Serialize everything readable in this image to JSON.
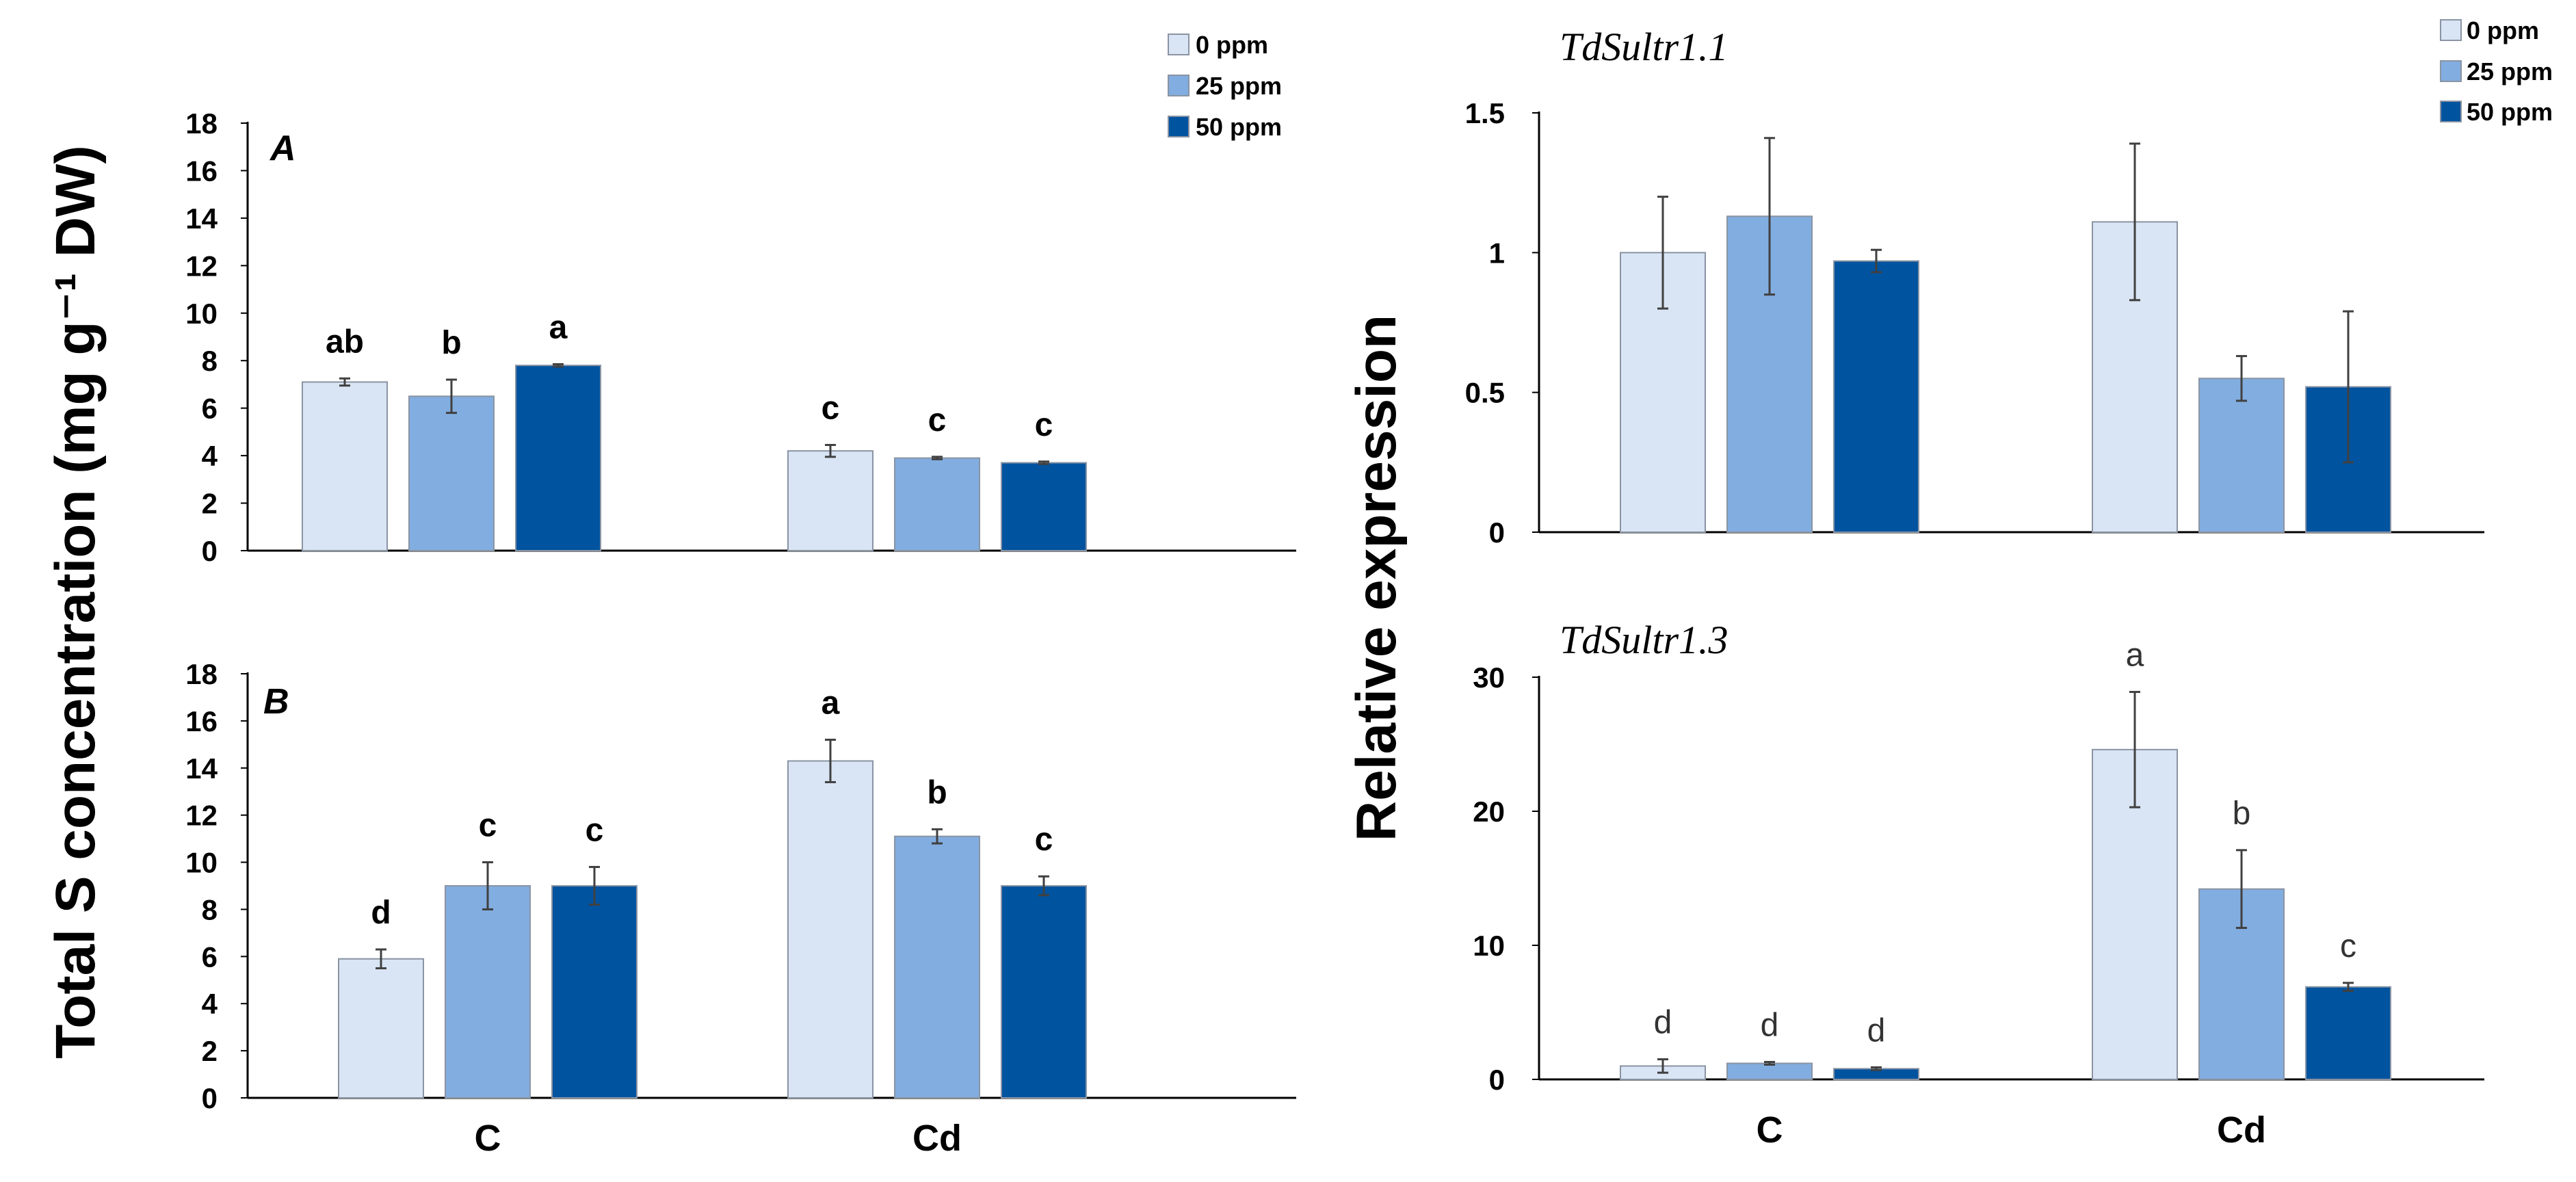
{
  "colors": {
    "ppm0": "#d9e5f4",
    "ppm25": "#82ade0",
    "ppm50": "#00539f",
    "bar_border": "#8a94a3",
    "axis": "#000000",
    "error": "#404040"
  },
  "legend_left": [
    "0 ppm",
    "25 ppm",
    "50 ppm"
  ],
  "legend_right": [
    "0 ppm",
    "25 ppm",
    "50 ppm"
  ],
  "left_ylabel": "Total S  concentration (mg g⁻¹ DW)",
  "right_ylabel": "Relative expression",
  "chart_data": [
    {
      "id": "A",
      "type": "bar",
      "panel_label": "A",
      "title": "",
      "xlabel": "",
      "ylabel": "Total S  concentration (mg g⁻¹ DW)",
      "categories": [
        "C",
        "Cd"
      ],
      "ylim": [
        0,
        18
      ],
      "yticks": [
        0,
        2,
        4,
        6,
        8,
        10,
        12,
        14,
        16,
        18
      ],
      "ytick_labels": [
        "0",
        "2",
        "4",
        "6",
        "8",
        "10",
        "12",
        "14",
        "16",
        "18"
      ],
      "show_category_labels": false,
      "letter_style": "bold",
      "series": [
        {
          "name": "0 ppm",
          "values": [
            7.1,
            4.2
          ],
          "errors": [
            0.15,
            0.25
          ],
          "letters": [
            "ab",
            "c"
          ]
        },
        {
          "name": "25 ppm",
          "values": [
            6.5,
            3.9
          ],
          "errors": [
            0.7,
            0.05
          ],
          "letters": [
            "b",
            "c"
          ]
        },
        {
          "name": "50 ppm",
          "values": [
            7.8,
            3.7
          ],
          "errors": [
            0.05,
            0.05
          ],
          "letters": [
            "a",
            "c"
          ]
        }
      ]
    },
    {
      "id": "B",
      "type": "bar",
      "panel_label": "B",
      "title": "",
      "xlabel": "",
      "ylabel": "Total S  concentration (mg g⁻¹ DW)",
      "categories": [
        "C",
        "Cd"
      ],
      "ylim": [
        0,
        18
      ],
      "yticks": [
        0,
        2,
        4,
        6,
        8,
        10,
        12,
        14,
        16,
        18
      ],
      "ytick_labels": [
        "0",
        "2",
        "4",
        "6",
        "8",
        "10",
        "12",
        "14",
        "16",
        "18"
      ],
      "show_category_labels": true,
      "letter_style": "bold",
      "series": [
        {
          "name": "0 ppm",
          "values": [
            5.9,
            14.3
          ],
          "errors": [
            0.4,
            0.9
          ],
          "letters": [
            "d",
            "a"
          ]
        },
        {
          "name": "25 ppm",
          "values": [
            9.0,
            11.1
          ],
          "errors": [
            1.0,
            0.3
          ],
          "letters": [
            "c",
            "b"
          ]
        },
        {
          "name": "50 ppm",
          "values": [
            9.0,
            9.0
          ],
          "errors": [
            0.8,
            0.4
          ],
          "letters": [
            "c",
            "c"
          ]
        }
      ]
    },
    {
      "id": "Sultr11",
      "type": "bar",
      "title": "TdSultr1.1",
      "xlabel": "",
      "ylabel": "Relative expression",
      "categories": [
        "C",
        "Cd"
      ],
      "ylim": [
        0,
        1.5
      ],
      "yticks": [
        0,
        0.5,
        1,
        1.5
      ],
      "ytick_labels": [
        "0",
        "0.5",
        "1",
        "1.5"
      ],
      "show_category_labels": false,
      "letter_style": "none",
      "series": [
        {
          "name": "0 ppm",
          "values": [
            1.0,
            1.11
          ],
          "errors": [
            0.2,
            0.28
          ]
        },
        {
          "name": "25 ppm",
          "values": [
            1.13,
            0.55
          ],
          "errors": [
            0.28,
            0.08
          ]
        },
        {
          "name": "50 ppm",
          "values": [
            0.97,
            0.52
          ],
          "errors": [
            0.04,
            0.27
          ]
        }
      ]
    },
    {
      "id": "Sultr13",
      "type": "bar",
      "title": "TdSultr1.3",
      "xlabel": "",
      "ylabel": "Relative expression",
      "categories": [
        "C",
        "Cd"
      ],
      "ylim": [
        0,
        30
      ],
      "yticks": [
        0,
        10,
        20,
        30
      ],
      "ytick_labels": [
        "0",
        "10",
        "20",
        "30"
      ],
      "show_category_labels": true,
      "letter_style": "light",
      "series": [
        {
          "name": "0 ppm",
          "values": [
            1.0,
            24.6
          ],
          "errors": [
            0.5,
            4.3
          ],
          "letters": [
            "d",
            "a"
          ]
        },
        {
          "name": "25 ppm",
          "values": [
            1.2,
            14.2
          ],
          "errors": [
            0.1,
            2.9
          ],
          "letters": [
            "d",
            "b"
          ]
        },
        {
          "name": "50 ppm",
          "values": [
            0.8,
            6.9
          ],
          "errors": [
            0.1,
            0.3
          ],
          "letters": [
            "d",
            "c"
          ]
        }
      ]
    }
  ]
}
